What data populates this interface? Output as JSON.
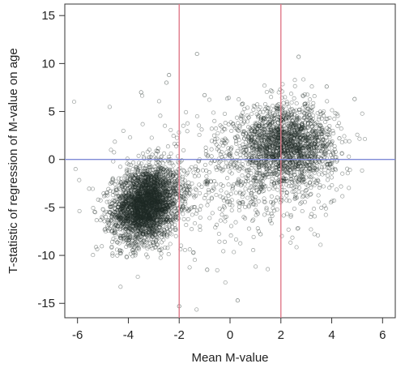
{
  "chart_data": {
    "type": "scatter",
    "title": "",
    "xlabel": "Mean M-value",
    "ylabel": "T-statistic of regression of M-value on age",
    "xlim": [
      -6.5,
      6.5
    ],
    "ylim": [
      -16.5,
      16.2
    ],
    "xticks": [
      -6,
      -4,
      -2,
      0,
      2,
      4,
      6
    ],
    "yticks": [
      -15,
      -10,
      -5,
      0,
      5,
      10,
      15
    ],
    "xtick_labels": [
      "-6",
      "-4",
      "-2",
      "0",
      "2",
      "4",
      "6"
    ],
    "ytick_labels": [
      "-15",
      "-10",
      "-5",
      "0",
      "5",
      "10",
      "15"
    ],
    "vertical_reference_lines": [
      -2,
      2
    ],
    "horizontal_reference_lines": [
      0
    ],
    "grid": false,
    "legend": "none",
    "colors": {
      "points": "#1e2b26",
      "vertical_lines": "#e07a8a",
      "horizontal_line": "#7f8ad6"
    },
    "clusters": [
      {
        "name": "",
        "center_x": -3.3,
        "center_y": -4.7,
        "sd_x": 0.65,
        "sd_y": 1.9,
        "weight": 0.55
      },
      {
        "name": "",
        "center_x": 2.2,
        "center_y": 1.4,
        "sd_x": 0.95,
        "sd_y": 2.1,
        "weight": 0.35
      },
      {
        "name": "",
        "center_x": 0.0,
        "center_y": -2.2,
        "sd_x": 1.9,
        "sd_y": 3.8,
        "weight": 0.1
      }
    ],
    "sample_points": [
      [
        -3.5,
        7.0
      ],
      [
        -2.4,
        8.8
      ],
      [
        -2.5,
        8.0
      ],
      [
        -1.3,
        11.0
      ],
      [
        2.7,
        10.7
      ],
      [
        -2.0,
        -15.3
      ],
      [
        0.3,
        -14.7
      ],
      [
        -4.3,
        -9.8
      ],
      [
        -4.5,
        -6.8
      ],
      [
        4.3,
        2.2
      ],
      [
        4.9,
        6.3
      ],
      [
        3.8,
        7.6
      ],
      [
        -5.0,
        -5.2
      ],
      [
        -3.6,
        -9.2
      ],
      [
        1.7,
        -4.5
      ],
      [
        0.5,
        5.8
      ],
      [
        -1.0,
        6.7
      ],
      [
        3.0,
        -3.2
      ],
      [
        -0.9,
        -11.5
      ],
      [
        1.2,
        -7.8
      ]
    ]
  }
}
